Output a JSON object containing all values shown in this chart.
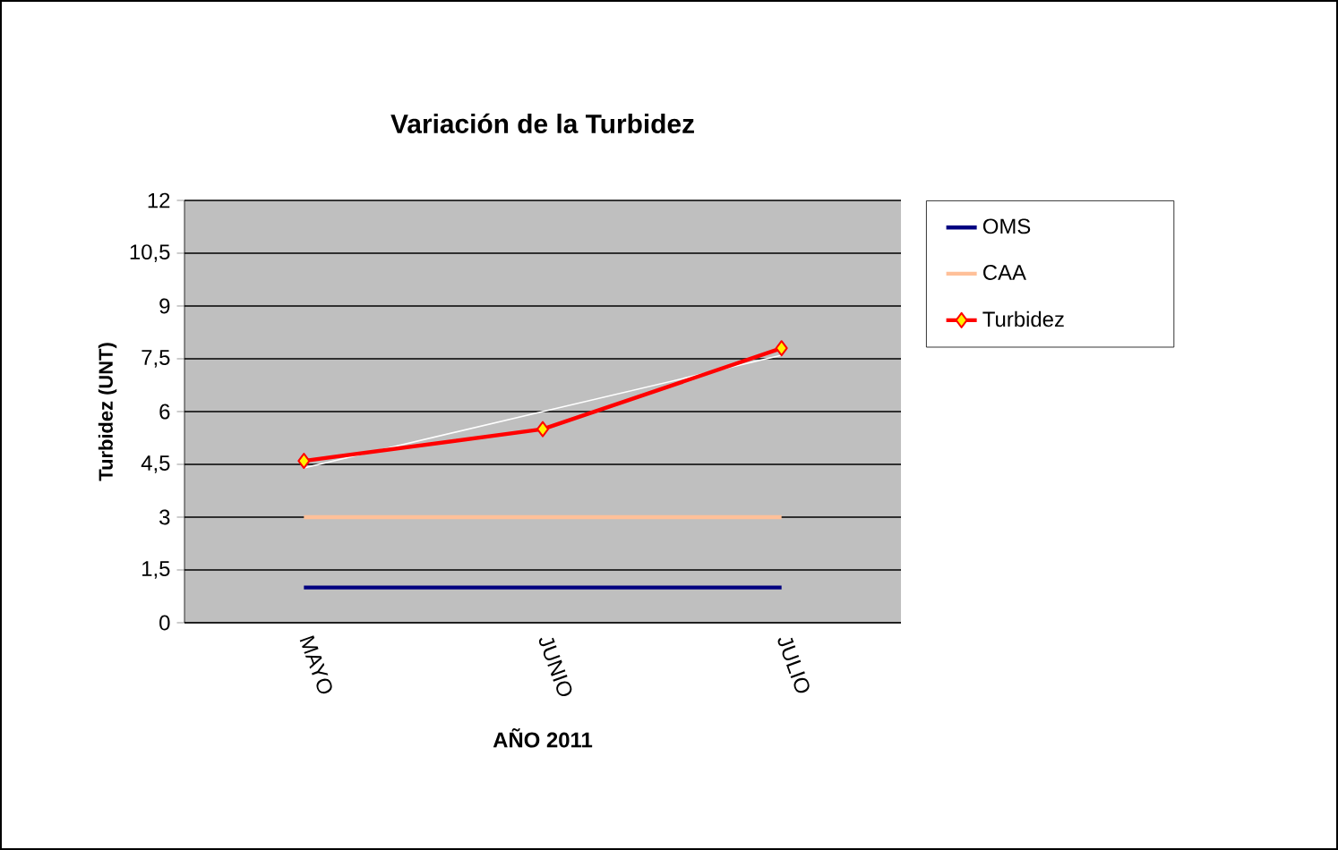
{
  "chart_data": {
    "type": "line",
    "title": "Variación de la Turbidez",
    "xlabel": "AÑO  2011",
    "ylabel": "Turbidez (UNT)",
    "categories": [
      "MAYO",
      "JUNIO",
      "JULIO"
    ],
    "series": [
      {
        "name": "OMS",
        "color": "#000080",
        "values": [
          1,
          1,
          1
        ],
        "marker": "none"
      },
      {
        "name": "CAA",
        "color": "#ffc099",
        "values": [
          3,
          3,
          3
        ],
        "marker": "none"
      },
      {
        "name": "Turbidez",
        "color": "#ff0000",
        "values": [
          4.6,
          5.5,
          7.8
        ],
        "marker": "diamond"
      },
      {
        "color": "#ffffff",
        "values": [
          4.4,
          6,
          7.6
        ],
        "marker": "none"
      }
    ],
    "ylim": [
      0,
      12
    ],
    "yticks": [
      0,
      {
        "value": 1.5,
        "label": "1,5"
      },
      3,
      {
        "value": 4.5,
        "label": "4,5"
      },
      6,
      {
        "value": 7.5,
        "label": "7,5"
      },
      9,
      {
        "value": 10.5,
        "label": "10,5"
      },
      12
    ],
    "grid": "y",
    "legend": "right"
  }
}
